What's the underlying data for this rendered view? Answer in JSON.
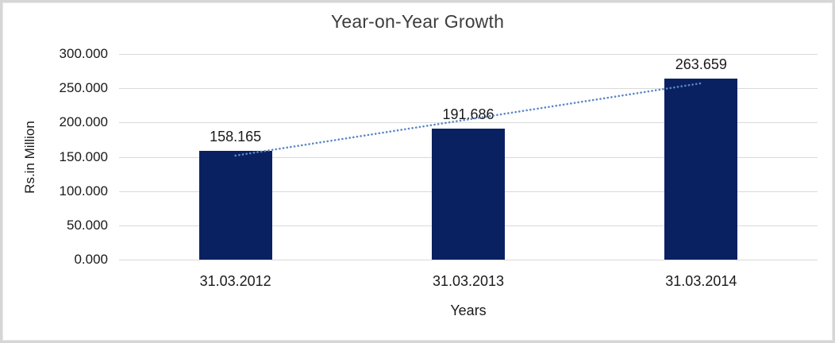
{
  "frame": {
    "background_color": "#ffffff",
    "border_color": "#d6d6d6"
  },
  "chart_data": {
    "type": "bar",
    "title": "Year-on-Year Growth",
    "xlabel": "Years",
    "ylabel": "Rs.in Million",
    "categories": [
      "31.03.2012",
      "31.03.2013",
      "31.03.2014"
    ],
    "values": [
      158.165,
      191.686,
      263.659
    ],
    "value_labels": [
      "158.165",
      "191.686",
      "263.659"
    ],
    "ylim": [
      0,
      300
    ],
    "yticks": [
      {
        "v": 0,
        "label": "0.000"
      },
      {
        "v": 50,
        "label": "50.000"
      },
      {
        "v": 100,
        "label": "100.000"
      },
      {
        "v": 150,
        "label": "150.000"
      },
      {
        "v": 200,
        "label": "200.000"
      },
      {
        "v": 250,
        "label": "250.000"
      },
      {
        "v": 300,
        "label": "300.000"
      }
    ],
    "grid": true,
    "legend": "none",
    "bar_color": "#0a2161",
    "gridline_color": "#d9d9d9",
    "trendline": {
      "type": "linear",
      "style": "dotted",
      "color": "#5b87c5",
      "start_value": 151.8,
      "end_value": 257.3
    }
  }
}
